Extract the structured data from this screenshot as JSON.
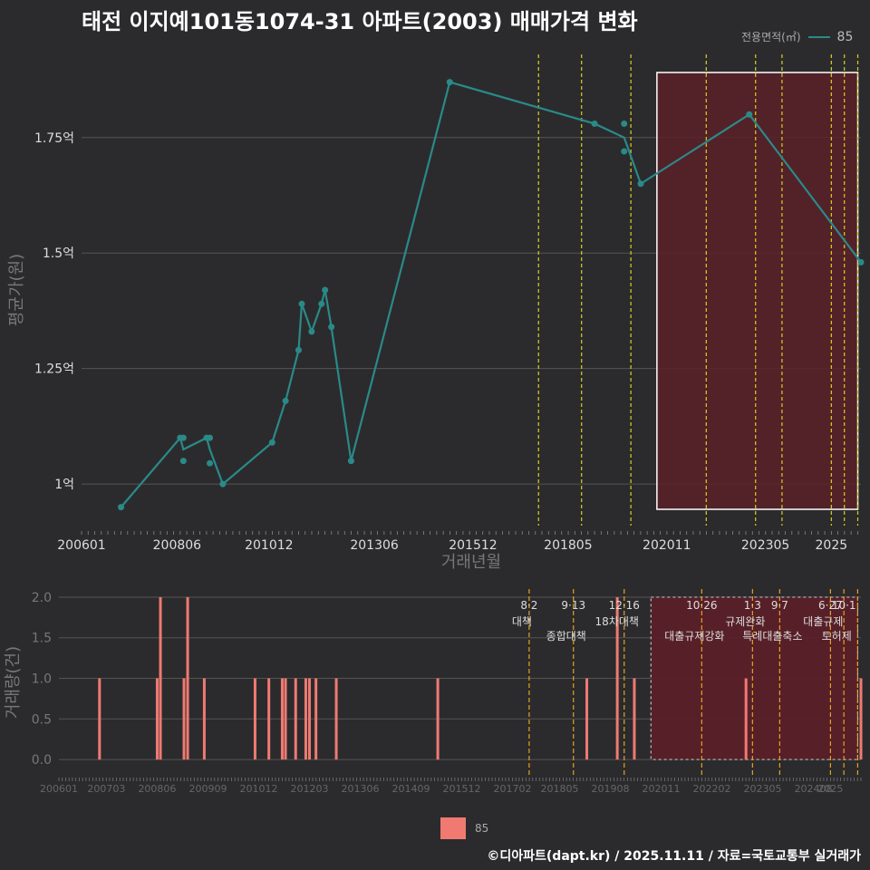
{
  "title": "태전 이지예101동1074-31 아파트(2003) 매매가격 변화",
  "legend": {
    "label": "전용면적(㎡)",
    "series": "85"
  },
  "footer": "©디아파트(dapt.kr) / 2025.11.11 / 자료=국토교통부 실거래가",
  "colors": {
    "line": "#2a8a88",
    "bar": "#f07a72",
    "vline_yellow": "#d8d020",
    "vline_orange": "#e8a020",
    "highlight": "#5a2028"
  },
  "chart_data": [
    {
      "type": "line",
      "title": "태전 이지예101동1074-31 아파트(2003) 매매가격 변화",
      "xlabel": "거래년월",
      "ylabel": "평균가(원)",
      "x_range": [
        2006.0,
        2025.75
      ],
      "ylim": [
        0.91,
        1.93
      ],
      "yticks": [
        1.0,
        1.25,
        1.5,
        1.75
      ],
      "ytick_labels": [
        "1억",
        "1.25억",
        "1.5억",
        "1.75억"
      ],
      "xticks": [
        2006.0,
        2008.42,
        2010.75,
        2013.42,
        2015.92,
        2018.33,
        2020.83,
        2023.33,
        2025.0
      ],
      "xtick_labels": [
        "200601",
        "200806",
        "201012",
        "201306",
        "201512",
        "201805",
        "202011",
        "202305",
        "2025"
      ],
      "series": [
        {
          "name": "85",
          "line": [
            [
              2007.0,
              0.95
            ],
            [
              2008.5,
              1.1
            ],
            [
              2008.58,
              1.075
            ],
            [
              2009.17,
              1.1
            ],
            [
              2009.25,
              1.075
            ],
            [
              2009.58,
              1.0
            ],
            [
              2010.83,
              1.09
            ],
            [
              2011.17,
              1.18
            ],
            [
              2011.5,
              1.29
            ],
            [
              2011.58,
              1.39
            ],
            [
              2011.83,
              1.33
            ],
            [
              2012.08,
              1.39
            ],
            [
              2012.17,
              1.42
            ],
            [
              2012.33,
              1.34
            ],
            [
              2012.83,
              1.05
            ],
            [
              2015.33,
              1.87
            ],
            [
              2019.0,
              1.78
            ],
            [
              2019.75,
              1.75
            ],
            [
              2020.17,
              1.65
            ],
            [
              2022.92,
              1.8
            ],
            [
              2025.75,
              1.48
            ]
          ],
          "points": [
            [
              2007.0,
              0.95
            ],
            [
              2008.5,
              1.1
            ],
            [
              2008.58,
              1.1
            ],
            [
              2008.58,
              1.05
            ],
            [
              2009.17,
              1.1
            ],
            [
              2009.25,
              1.1
            ],
            [
              2009.25,
              1.045
            ],
            [
              2009.58,
              1.0
            ],
            [
              2010.83,
              1.09
            ],
            [
              2011.17,
              1.18
            ],
            [
              2011.5,
              1.29
            ],
            [
              2011.58,
              1.39
            ],
            [
              2011.83,
              1.33
            ],
            [
              2012.08,
              1.39
            ],
            [
              2012.17,
              1.42
            ],
            [
              2012.33,
              1.34
            ],
            [
              2012.83,
              1.05
            ],
            [
              2015.33,
              1.87
            ],
            [
              2019.0,
              1.78
            ],
            [
              2019.75,
              1.78
            ],
            [
              2019.75,
              1.72
            ],
            [
              2020.17,
              1.65
            ],
            [
              2022.92,
              1.8
            ],
            [
              2025.75,
              1.48
            ]
          ]
        }
      ],
      "highlight_range": [
        2020.58,
        2025.67
      ],
      "vlines": [
        2017.58,
        2018.67,
        2019.92,
        2021.83,
        2023.08,
        2023.75,
        2025.0,
        2025.33,
        2025.67
      ]
    },
    {
      "type": "bar",
      "xlabel": "",
      "ylabel": "거래량(건)",
      "x_range": [
        2006.0,
        2025.75
      ],
      "ylim": [
        -0.2,
        2.1
      ],
      "yticks": [
        0.0,
        0.5,
        1.0,
        1.5,
        2.0
      ],
      "ytick_labels": [
        "0.0",
        "0.5",
        "1.0",
        "1.5",
        "2.0"
      ],
      "xticks": [
        2006.0,
        2007.17,
        2008.42,
        2009.67,
        2010.92,
        2012.17,
        2013.42,
        2014.67,
        2015.92,
        2017.17,
        2018.33,
        2019.58,
        2020.83,
        2022.08,
        2023.33,
        2024.58,
        2025.0
      ],
      "xtick_labels": [
        "200601",
        "200703",
        "200806",
        "200909",
        "201012",
        "201203",
        "201306",
        "201409",
        "201512",
        "201702",
        "201805",
        "201908",
        "202011",
        "202202",
        "202305",
        "202408",
        "2025"
      ],
      "bars": [
        [
          2007.0,
          1
        ],
        [
          2008.42,
          1
        ],
        [
          2008.5,
          2
        ],
        [
          2009.08,
          1
        ],
        [
          2009.17,
          2
        ],
        [
          2009.58,
          1
        ],
        [
          2010.83,
          1
        ],
        [
          2011.17,
          1
        ],
        [
          2011.5,
          1
        ],
        [
          2011.58,
          1
        ],
        [
          2011.83,
          1
        ],
        [
          2012.08,
          1
        ],
        [
          2012.17,
          1
        ],
        [
          2012.33,
          1
        ],
        [
          2012.83,
          1
        ],
        [
          2015.33,
          1
        ],
        [
          2019.0,
          1
        ],
        [
          2019.75,
          2
        ],
        [
          2020.17,
          1
        ],
        [
          2022.92,
          1
        ],
        [
          2025.75,
          1
        ]
      ],
      "highlight_range": [
        2020.58,
        2025.67
      ],
      "vlines": [
        2017.58,
        2018.67,
        2019.92,
        2021.83,
        2023.08,
        2023.75,
        2025.0,
        2025.33,
        2025.67
      ],
      "annotations": [
        {
          "x": 2017.58,
          "date": "8·2",
          "text": "대책"
        },
        {
          "x": 2018.67,
          "date": "9·13",
          "text": "종합대책"
        },
        {
          "x": 2019.92,
          "date": "12·16",
          "text": "18차대책"
        },
        {
          "x": 2021.83,
          "date": "10·26",
          "text": "대출규제강화"
        },
        {
          "x": 2023.08,
          "date": "1·3",
          "text": "규제완화"
        },
        {
          "x": 2023.75,
          "date": "9·7",
          "text": "특례대출축소"
        },
        {
          "x": 2025.0,
          "date": "6·27",
          "text": "대출규제"
        },
        {
          "x": 2025.33,
          "date": "10·1",
          "text": "토허제"
        }
      ]
    }
  ]
}
